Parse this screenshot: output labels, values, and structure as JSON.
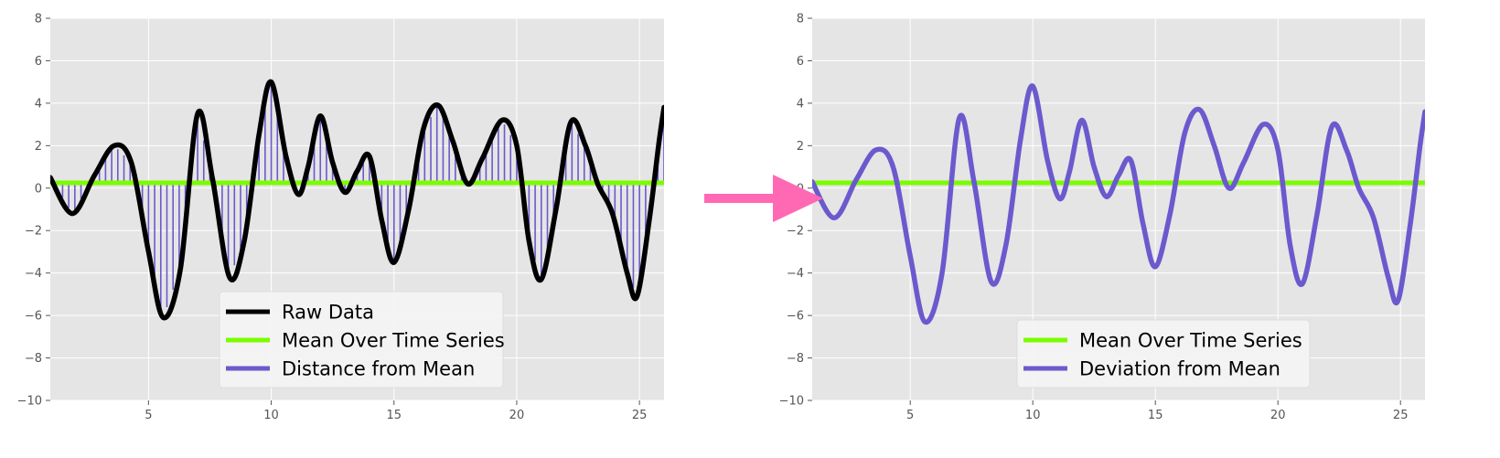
{
  "chart_data": [
    {
      "type": "line",
      "panel": "left",
      "xlim": [
        1,
        26
      ],
      "ylim": [
        -10,
        8
      ],
      "xticks": [
        "5",
        "10",
        "15",
        "20",
        "25"
      ],
      "yticks": [
        "8",
        "6",
        "4",
        "2",
        "0",
        "−2",
        "−4",
        "−6",
        "−8",
        "−10"
      ],
      "grid": true,
      "legend_position": "lower-center",
      "mean": 0.25,
      "series": [
        {
          "name": "Raw Data",
          "color": "#000000",
          "x": [
            1,
            1.9,
            2.8,
            3.6,
            4.3,
            5.0,
            5.6,
            6.3,
            7.0,
            7.6,
            8.3,
            8.9,
            9.5,
            10.0,
            10.6,
            11.1,
            11.5,
            12.0,
            12.5,
            13.0,
            13.5,
            14.0,
            14.5,
            15.0,
            15.6,
            16.2,
            16.8,
            17.4,
            18.0,
            18.6,
            19.4,
            20.0,
            20.5,
            21.0,
            21.6,
            22.2,
            22.8,
            23.3,
            23.9,
            24.5,
            24.9,
            25.4,
            25.8,
            26.0
          ],
          "y": [
            0.5,
            -1.2,
            0.6,
            2.0,
            1.2,
            -3.0,
            -6.1,
            -3.8,
            3.5,
            0.5,
            -4.2,
            -2.5,
            2.5,
            5.0,
            1.5,
            -0.3,
            1.0,
            3.4,
            1.2,
            -0.2,
            0.8,
            1.5,
            -1.5,
            -3.5,
            -1.0,
            2.8,
            3.9,
            2.2,
            0.2,
            1.4,
            3.2,
            2.0,
            -2.5,
            -4.3,
            -1.0,
            3.1,
            2.0,
            0.2,
            -1.2,
            -4.0,
            -5.1,
            -1.5,
            2.2,
            3.8
          ]
        },
        {
          "name": "Mean Over Time Series",
          "color": "#7cfc00",
          "x": [
            1,
            26
          ],
          "y": [
            0.25,
            0.25
          ]
        },
        {
          "name": "Distance from Mean",
          "color": "#6a5acd",
          "style": "vertical bars from mean to data"
        }
      ]
    },
    {
      "type": "line",
      "panel": "right",
      "xlim": [
        1,
        26
      ],
      "ylim": [
        -10,
        8
      ],
      "xticks": [
        "5",
        "10",
        "15",
        "20",
        "25"
      ],
      "yticks": [
        "8",
        "6",
        "4",
        "2",
        "0",
        "−2",
        "−4",
        "−6",
        "−8",
        "−10"
      ],
      "grid": true,
      "legend_position": "lower-center",
      "series": [
        {
          "name": "Mean Over Time Series",
          "color": "#7cfc00",
          "x": [
            1,
            26
          ],
          "y": [
            0.25,
            0.25
          ]
        },
        {
          "name": "Deviation from Mean",
          "color": "#6a5acd",
          "x": [
            1,
            1.9,
            2.8,
            3.6,
            4.3,
            5.0,
            5.6,
            6.3,
            7.0,
            7.6,
            8.3,
            8.9,
            9.5,
            10.0,
            10.6,
            11.1,
            11.5,
            12.0,
            12.5,
            13.0,
            13.5,
            14.0,
            14.5,
            15.0,
            15.6,
            16.2,
            16.8,
            17.4,
            18.0,
            18.6,
            19.4,
            20.0,
            20.5,
            21.0,
            21.6,
            22.2,
            22.8,
            23.3,
            23.9,
            24.5,
            24.9,
            25.4,
            25.8,
            26.0
          ],
          "y": [
            0.3,
            -1.4,
            0.4,
            1.8,
            1.0,
            -3.2,
            -6.3,
            -4.0,
            3.3,
            0.3,
            -4.4,
            -2.7,
            2.3,
            4.8,
            1.3,
            -0.5,
            0.8,
            3.2,
            1.0,
            -0.4,
            0.6,
            1.3,
            -1.7,
            -3.7,
            -1.2,
            2.6,
            3.7,
            2.0,
            0.0,
            1.2,
            3.0,
            1.8,
            -2.7,
            -4.5,
            -1.2,
            2.9,
            1.8,
            0.0,
            -1.4,
            -4.2,
            -5.3,
            -1.7,
            2.0,
            3.6
          ]
        }
      ]
    }
  ],
  "arrow": {
    "color": "#ff69b4",
    "icon": "right-arrow-icon"
  },
  "colors": {
    "plot_bg": "#e5e5e5",
    "grid": "#ffffff",
    "tick_text": "#555555"
  }
}
